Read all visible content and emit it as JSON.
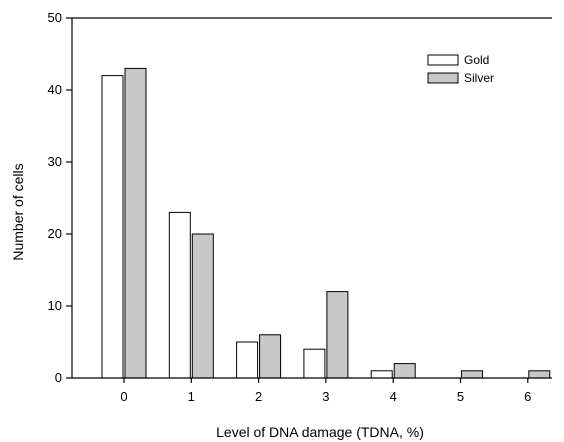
{
  "chart_data": {
    "type": "bar",
    "categories": [
      "0",
      "1",
      "2",
      "3",
      "4",
      "5",
      "6"
    ],
    "series": [
      {
        "name": "Gold",
        "values": [
          42,
          23,
          5,
          4,
          1,
          0,
          0
        ],
        "color": "#ffffff"
      },
      {
        "name": "Silver",
        "values": [
          43,
          20,
          6,
          12,
          2,
          1,
          1
        ],
        "color": "#c8c8c8"
      }
    ],
    "xlabel": "Level of DNA damage (TDNA, %)",
    "ylabel": "Number of cells",
    "ylim": [
      0,
      50
    ],
    "yticks": [
      "0",
      "10",
      "20",
      "30",
      "40",
      "50"
    ],
    "grid": false,
    "legend_position": "top-right"
  }
}
